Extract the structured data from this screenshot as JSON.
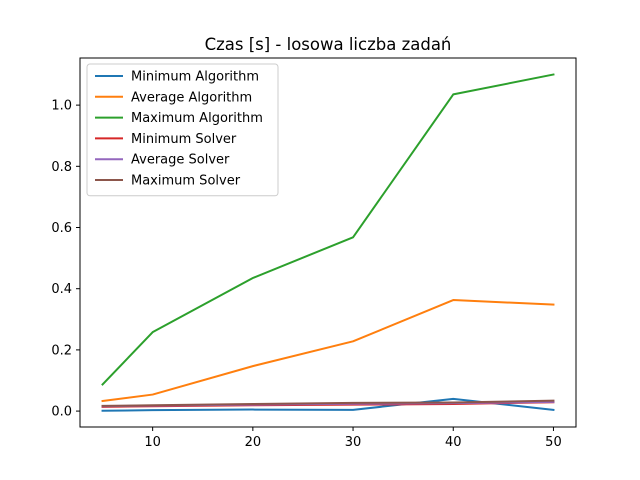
{
  "chart_data": {
    "type": "line",
    "title": "Czas [s] - losowa liczba zadań",
    "xlabel": "",
    "ylabel": "",
    "x": [
      5,
      10,
      20,
      30,
      40,
      50
    ],
    "xlim": [
      2.75,
      52.25
    ],
    "ylim": [
      -0.052,
      1.154
    ],
    "x_ticks": [
      10,
      20,
      30,
      40,
      50
    ],
    "x_tick_labels": [
      "10",
      "20",
      "30",
      "40",
      "50"
    ],
    "y_ticks": [
      0.0,
      0.2,
      0.4,
      0.6,
      0.8,
      1.0
    ],
    "y_tick_labels": [
      "0.0",
      "0.2",
      "0.4",
      "0.6",
      "0.8",
      "1.0"
    ],
    "grid": false,
    "legend_position": "top-left",
    "series": [
      {
        "name": "Minimum Algorithm",
        "color": "#1f77b4",
        "values": [
          0.001,
          0.003,
          0.005,
          0.004,
          0.04,
          0.004
        ]
      },
      {
        "name": "Average Algorithm",
        "color": "#ff7f0e",
        "values": [
          0.033,
          0.054,
          0.147,
          0.228,
          0.363,
          0.348
        ]
      },
      {
        "name": "Maximum Algorithm",
        "color": "#2ca02c",
        "values": [
          0.087,
          0.258,
          0.435,
          0.568,
          1.035,
          1.1
        ]
      },
      {
        "name": "Minimum Solver",
        "color": "#d62728",
        "values": [
          0.014,
          0.016,
          0.019,
          0.021,
          0.023,
          0.029
        ]
      },
      {
        "name": "Average Solver",
        "color": "#9467bd",
        "values": [
          0.016,
          0.018,
          0.021,
          0.024,
          0.026,
          0.03
        ]
      },
      {
        "name": "Maximum Solver",
        "color": "#8c564b",
        "values": [
          0.017,
          0.019,
          0.023,
          0.027,
          0.028,
          0.034
        ]
      }
    ]
  }
}
